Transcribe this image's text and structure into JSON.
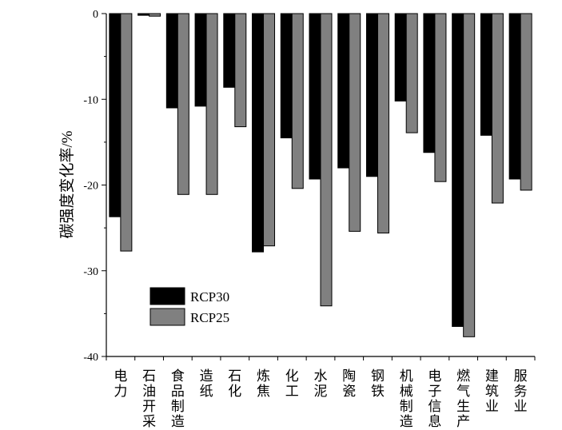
{
  "chart_data": {
    "type": "bar",
    "title": "",
    "xlabel": "",
    "ylabel": "碳强度变化率/%",
    "ylim": [
      -40,
      0
    ],
    "yticks": [
      0,
      -10,
      -20,
      -30,
      -40
    ],
    "grid": false,
    "legend_position": "bottom-left",
    "categories": [
      [
        "电",
        "力"
      ],
      [
        "石",
        "油",
        "开",
        "采"
      ],
      [
        "食",
        "品",
        "制",
        "造"
      ],
      [
        "造",
        "纸"
      ],
      [
        "石",
        "化"
      ],
      [
        "炼",
        "焦"
      ],
      [
        "化",
        "工"
      ],
      [
        "水",
        "泥"
      ],
      [
        "陶",
        "瓷"
      ],
      [
        "钢",
        "铁"
      ],
      [
        "机",
        "械",
        "制",
        "造"
      ],
      [
        "电",
        "子",
        "信",
        "息"
      ],
      [
        "燃",
        "气",
        "生",
        "产"
      ],
      [
        "建",
        "筑",
        "业"
      ],
      [
        "服",
        "务",
        "业"
      ]
    ],
    "series": [
      {
        "name": "RCP30",
        "color": "#000000",
        "values": [
          -23.7,
          -0.2,
          -11.0,
          -10.8,
          -8.6,
          -27.8,
          -14.5,
          -19.3,
          -18.0,
          -19.0,
          -10.2,
          -16.2,
          -36.5,
          -14.2,
          -19.3
        ]
      },
      {
        "name": "RCP25",
        "color": "#808080",
        "values": [
          -27.7,
          -0.3,
          -21.1,
          -21.1,
          -13.2,
          -27.1,
          -20.4,
          -34.1,
          -25.4,
          -25.6,
          -13.9,
          -19.6,
          -37.7,
          -22.1,
          -20.6
        ]
      }
    ]
  }
}
